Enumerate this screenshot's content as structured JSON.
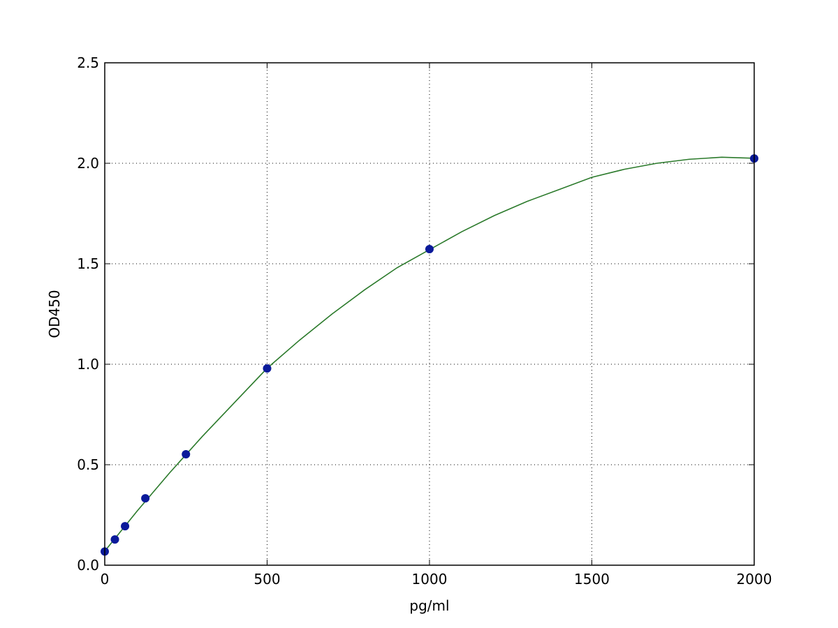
{
  "chart_data": {
    "type": "scatter",
    "xlabel": "pg/ml",
    "ylabel": "OD450",
    "xlim": [
      0,
      2000
    ],
    "xticks": [
      0,
      500,
      1000,
      1500,
      2000
    ],
    "ylim": [
      0,
      2.5
    ],
    "yticks": [
      {
        "value": 0,
        "label": "0.0"
      },
      0.5,
      {
        "value": 1,
        "label": "1.0"
      },
      1.5,
      {
        "value": 2,
        "label": "2.0"
      },
      2.5
    ],
    "grid": true,
    "series": [
      {
        "type": "line",
        "color": "#2b7a2b",
        "x": [
          0,
          100,
          200,
          300,
          400,
          500,
          600,
          700,
          800,
          900,
          1000,
          1100,
          1200,
          1300,
          1400,
          1500,
          1600,
          1700,
          1800,
          1900,
          2000
        ],
        "values": [
          0.07,
          0.27,
          0.46,
          0.64,
          0.81,
          0.98,
          1.12,
          1.25,
          1.37,
          1.48,
          1.57,
          1.66,
          1.74,
          1.81,
          1.87,
          1.93,
          1.97,
          2.0,
          2.02,
          2.03,
          2.025
        ]
      },
      {
        "type": "scatter",
        "color": "#0a1a9a",
        "x": [
          0,
          31.25,
          62.5,
          125,
          250,
          500,
          1000,
          2000
        ],
        "values": [
          0.068,
          0.128,
          0.194,
          0.333,
          0.552,
          0.979,
          1.573,
          2.024
        ]
      }
    ]
  }
}
